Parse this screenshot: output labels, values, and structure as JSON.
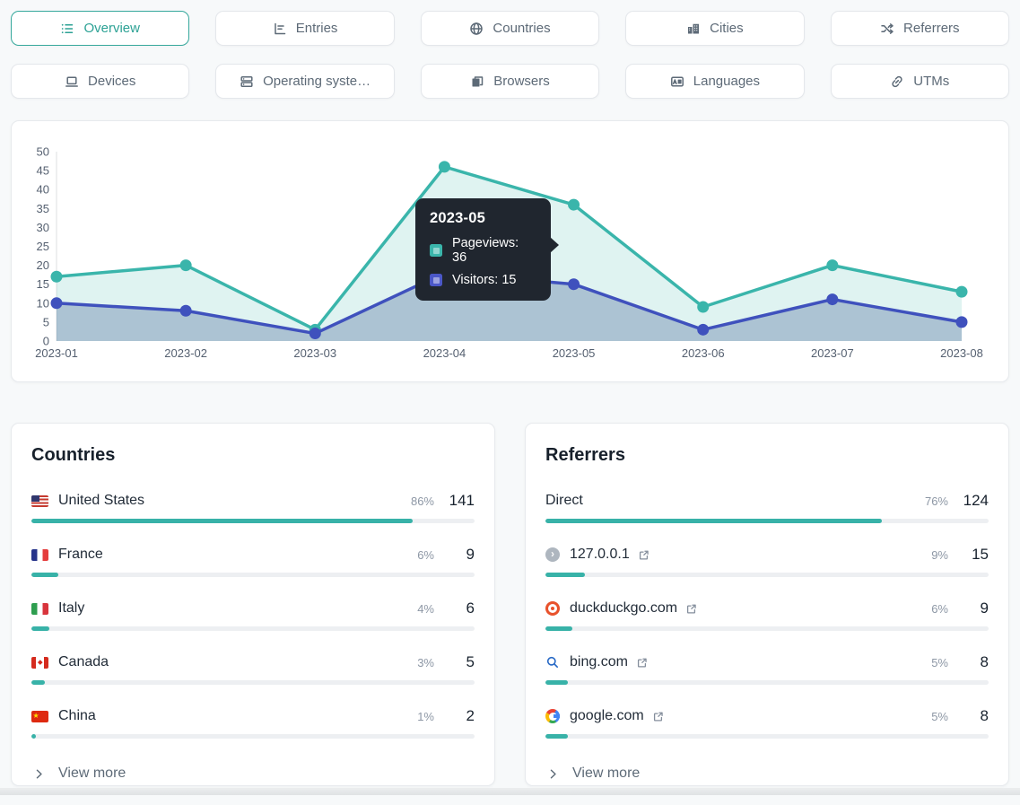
{
  "tabs": {
    "items": [
      {
        "label": "Overview",
        "icon": "list-icon",
        "active": true
      },
      {
        "label": "Entries",
        "icon": "bar-chart-icon",
        "active": false
      },
      {
        "label": "Countries",
        "icon": "globe-icon",
        "active": false
      },
      {
        "label": "Cities",
        "icon": "city-icon",
        "active": false
      },
      {
        "label": "Referrers",
        "icon": "shuffle-icon",
        "active": false
      },
      {
        "label": "Devices",
        "icon": "laptop-icon",
        "active": false
      },
      {
        "label": "Operating syste…",
        "icon": "server-icon",
        "active": false
      },
      {
        "label": "Browsers",
        "icon": "browser-windows-icon",
        "active": false
      },
      {
        "label": "Languages",
        "icon": "translate-icon",
        "active": false
      },
      {
        "label": "UTMs",
        "icon": "link-icon",
        "active": false
      }
    ],
    "active_color": "#2da295"
  },
  "chart_data": {
    "type": "area",
    "x": [
      "2023-01",
      "2023-02",
      "2023-03",
      "2023-04",
      "2023-05",
      "2023-06",
      "2023-07",
      "2023-08"
    ],
    "series": [
      {
        "name": "Pageviews",
        "values": [
          17,
          20,
          3,
          46,
          36,
          9,
          20,
          13
        ],
        "color": "#3ab5ab",
        "fill": "rgba(58,181,171,0.16)"
      },
      {
        "name": "Visitors",
        "values": [
          10,
          8,
          2,
          18,
          15,
          3,
          11,
          5
        ],
        "color": "#3f51bd",
        "fill": "rgba(71,98,152,0.33)"
      }
    ],
    "ylim": [
      0,
      50
    ],
    "ytick_step": 5,
    "grid": false,
    "legend_position": "tooltip-only",
    "xlabel": "",
    "ylabel": ""
  },
  "chart_tooltip": {
    "title": "2023-05",
    "rows": [
      {
        "name": "Pageviews",
        "value": 36,
        "color": "#3ab5ab"
      },
      {
        "name": "Visitors",
        "value": 15,
        "color": "#4b57c8"
      }
    ]
  },
  "panels": [
    {
      "title": "Countries",
      "view_more": "View more",
      "rows": [
        {
          "label": "United States",
          "icon": "flag-us",
          "external_link": false,
          "percent": "86%",
          "count": "141",
          "bar_pct": 86
        },
        {
          "label": "France",
          "icon": "flag-fr",
          "external_link": false,
          "percent": "6%",
          "count": "9",
          "bar_pct": 6
        },
        {
          "label": "Italy",
          "icon": "flag-it",
          "external_link": false,
          "percent": "4%",
          "count": "6",
          "bar_pct": 4
        },
        {
          "label": "Canada",
          "icon": "flag-ca",
          "external_link": false,
          "percent": "3%",
          "count": "5",
          "bar_pct": 3
        },
        {
          "label": "China",
          "icon": "flag-cn",
          "external_link": false,
          "percent": "1%",
          "count": "2",
          "bar_pct": 1
        }
      ]
    },
    {
      "title": "Referrers",
      "view_more": "View more",
      "rows": [
        {
          "label": "Direct",
          "icon": null,
          "external_link": false,
          "percent": "76%",
          "count": "124",
          "bar_pct": 76
        },
        {
          "label": "127.0.0.1",
          "icon": "circle-chevron-icon",
          "external_link": true,
          "percent": "9%",
          "count": "15",
          "bar_pct": 9
        },
        {
          "label": "duckduckgo.com",
          "icon": "duckduckgo-icon",
          "external_link": true,
          "percent": "6%",
          "count": "9",
          "bar_pct": 6
        },
        {
          "label": "bing.com",
          "icon": "bing-icon",
          "external_link": true,
          "percent": "5%",
          "count": "8",
          "bar_pct": 5
        },
        {
          "label": "google.com",
          "icon": "google-icon",
          "external_link": true,
          "percent": "5%",
          "count": "8",
          "bar_pct": 5
        }
      ]
    }
  ],
  "colors": {
    "accent_teal": "#38b2a8",
    "series_blue": "#3f51bd",
    "bar_track": "#edeff2",
    "tooltip_bg": "#20262f",
    "tab_text": "#5d6a77"
  }
}
